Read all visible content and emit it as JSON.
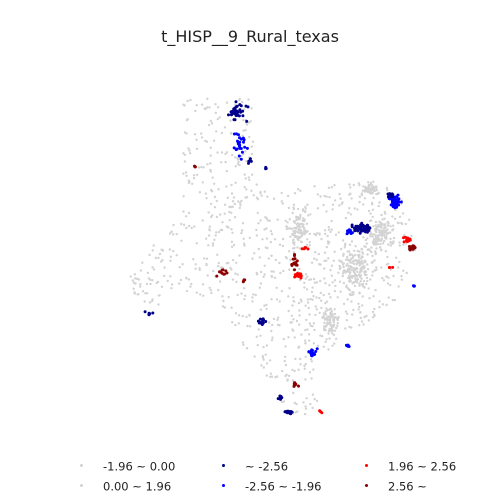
{
  "map": {
    "title": "t_HISP__9_Rural_texas"
  },
  "legend": {
    "items": [
      {
        "label": "-1.96 ~ 0.00",
        "color": "#d3d3d3"
      },
      {
        "label": "0.00 ~ 1.96",
        "color": "#d3d3d3"
      },
      {
        "label": "~ -2.56",
        "color": "#00008b"
      },
      {
        "label": "-2.56 ~ -1.96",
        "color": "#0000ff"
      },
      {
        "label": "1.96 ~ 2.56",
        "color": "#ff0000"
      },
      {
        "label": "2.56 ~",
        "color": "#8b0000"
      }
    ]
  },
  "colors": {
    "not_significant": "#d3d3d3",
    "cold_99": "#00008b",
    "cold_95": "#0000ff",
    "hot_95": "#ff0000",
    "hot_99": "#8b0000"
  }
}
